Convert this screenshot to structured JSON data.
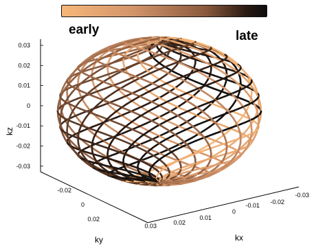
{
  "chart_data": {
    "type": "surface-3d",
    "colorbar": {
      "left_label": "early",
      "right_label": "late",
      "colors": [
        "#f7b77a",
        "#d2946a",
        "#8a5a3e",
        "#2a1a12",
        "#0d0d0d"
      ]
    },
    "axes": {
      "xlabel": "kx",
      "ylabel": "ky",
      "zlabel": "kz",
      "xlim": [
        -0.03,
        0.03
      ],
      "ylim": [
        -0.03,
        0.03
      ],
      "zlim": [
        -0.03,
        0.03
      ],
      "z_ticks": [
        "0.03",
        "0.02",
        "0.01",
        "0",
        "-0.01",
        "-0.02",
        "-0.03"
      ],
      "y_ticks": [
        "-0.02",
        "0",
        "0.02"
      ],
      "x_ticks": [
        "0.03",
        "0.02",
        "0.01",
        "0",
        "-0.01",
        "-0.02",
        "-0.03"
      ],
      "grid": false
    },
    "surface": {
      "shape": "ellipsoid",
      "semi_axes": {
        "kx": 0.03,
        "ky": 0.03,
        "kz": 0.03
      },
      "spiral_interleaves": 16,
      "spiral_turns": 1.5,
      "time_colormap": "early to late"
    }
  }
}
